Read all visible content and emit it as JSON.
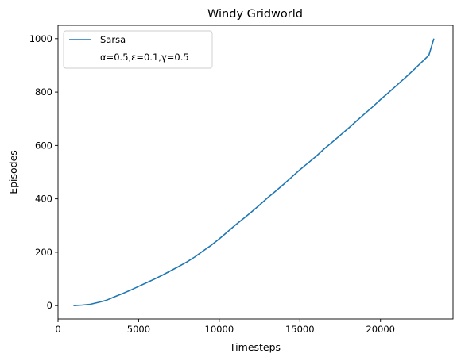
{
  "chart_data": {
    "type": "line",
    "title": "Windy Gridworld",
    "xlabel": "Timesteps",
    "ylabel": "Episodes",
    "xlim": [
      0,
      24500
    ],
    "ylim": [
      -50,
      1050
    ],
    "xticks": [
      0,
      5000,
      10000,
      15000,
      20000
    ],
    "xtick_labels": [
      "0",
      "5000",
      "10000",
      "15000",
      "20000"
    ],
    "yticks": [
      0,
      200,
      400,
      600,
      800,
      1000
    ],
    "ytick_labels": [
      "0",
      "200",
      "400",
      "600",
      "800",
      "1000"
    ],
    "grid": false,
    "legend_position": "top-left",
    "legend_entries": [
      {
        "label": "Sarsa",
        "has_line": true
      },
      {
        "label": "α=0.5,ε=0.1,γ=0.5",
        "has_line": false
      }
    ],
    "series": [
      {
        "name": "Sarsa",
        "color": "#1f77b4",
        "x": [
          1000,
          1500,
          2000,
          2500,
          3000,
          3500,
          4000,
          4500,
          5000,
          5500,
          6000,
          6500,
          7000,
          7500,
          8000,
          8500,
          9000,
          9500,
          10000,
          10500,
          11000,
          11500,
          12000,
          12500,
          13000,
          13500,
          14000,
          14500,
          15000,
          15500,
          16000,
          16500,
          17000,
          17500,
          18000,
          18500,
          19000,
          19500,
          20000,
          20500,
          21000,
          21500,
          22000,
          22500,
          23000,
          23300
        ],
        "y": [
          0,
          2,
          5,
          12,
          20,
          33,
          45,
          58,
          72,
          86,
          100,
          115,
          131,
          147,
          164,
          183,
          205,
          226,
          250,
          276,
          302,
          326,
          351,
          377,
          404,
          429,
          455,
          482,
          509,
          534,
          559,
          587,
          612,
          638,
          664,
          691,
          718,
          744,
          772,
          798,
          825,
          852,
          880,
          909,
          938,
          998
        ]
      }
    ]
  }
}
